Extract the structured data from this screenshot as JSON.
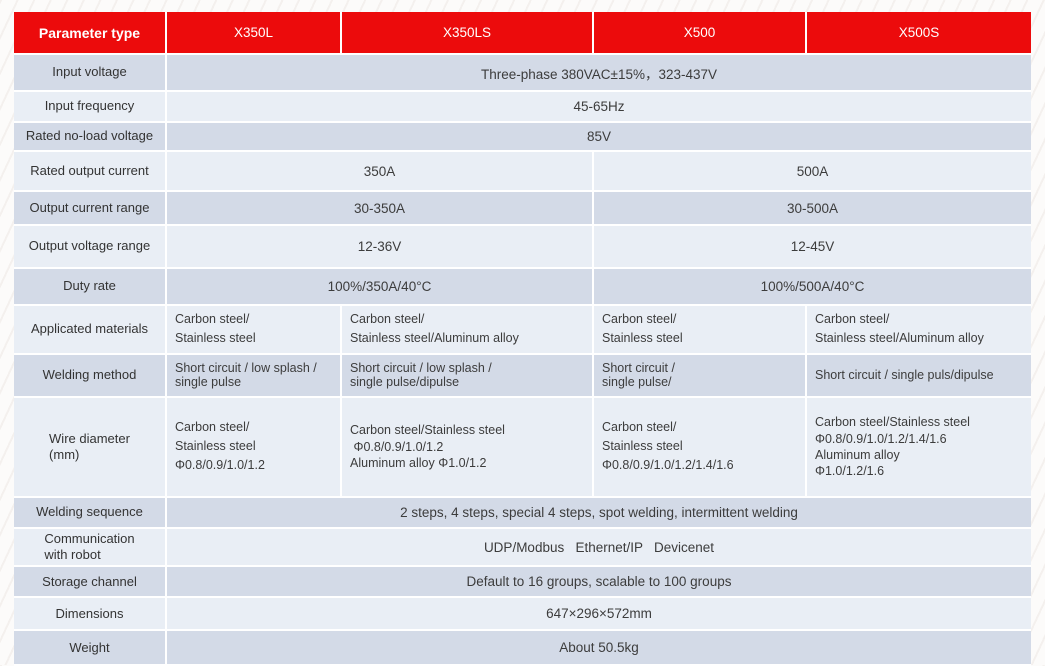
{
  "colors": {
    "header_bg": "#ec0b0c",
    "header_text": "#ffffff",
    "row_dark": "#d3dae7",
    "row_light": "#e9eef5",
    "gap": "#ffffff",
    "text": "#3c3c3c"
  },
  "header": {
    "cells": [
      "Parameter type",
      "X350L",
      "X350LS",
      "X500",
      "X500S"
    ]
  },
  "rows": [
    {
      "label": "Input voltage",
      "cells": [
        {
          "span": 4,
          "text": "Three-phase 380VAC±15%，323-437V"
        }
      ]
    },
    {
      "label": "Input frequency",
      "cells": [
        {
          "span": 4,
          "text": "45-65Hz"
        }
      ]
    },
    {
      "label": "Rated no-load voltage",
      "cells": [
        {
          "span": 4,
          "text": "85V"
        }
      ]
    },
    {
      "label": "Rated output current",
      "cells": [
        {
          "span": 2,
          "text": "350A"
        },
        {
          "span": 2,
          "text": "500A"
        }
      ]
    },
    {
      "label": "Output current range",
      "cells": [
        {
          "span": 2,
          "text": "30-350A"
        },
        {
          "span": 2,
          "text": "30-500A"
        }
      ]
    },
    {
      "label": "Output voltage range",
      "cells": [
        {
          "span": 2,
          "text": "12-36V"
        },
        {
          "span": 2,
          "text": "12-45V"
        }
      ]
    },
    {
      "label": "Duty rate",
      "cells": [
        {
          "span": 2,
          "text": "100%/350A/40°C"
        },
        {
          "span": 2,
          "text": "100%/500A/40°C"
        }
      ]
    },
    {
      "label": "Applicated  materials",
      "cells": [
        {
          "span": 1,
          "lines": [
            "Carbon steel/",
            "Stainless steel"
          ]
        },
        {
          "span": 1,
          "lines": [
            "Carbon steel/",
            "Stainless steel/Aluminum alloy"
          ]
        },
        {
          "span": 1,
          "lines": [
            "Carbon steel/",
            "Stainless steel"
          ]
        },
        {
          "span": 1,
          "lines": [
            "Carbon steel/",
            "Stainless steel/Aluminum alloy"
          ]
        }
      ]
    },
    {
      "label": "Welding method",
      "cells": [
        {
          "span": 1,
          "spacing": "tight",
          "lines": [
            "Short circuit / low splash /",
            "single pulse"
          ]
        },
        {
          "span": 1,
          "spacing": "tight",
          "lines": [
            "Short circuit / low splash /",
            "single pulse/dipulse"
          ]
        },
        {
          "span": 1,
          "spacing": "tight",
          "lines": [
            "Short circuit /",
            "single pulse/"
          ]
        },
        {
          "span": 1,
          "lines": [
            "Short circuit / single puls/dipulse"
          ]
        }
      ]
    },
    {
      "label": "Wire diameter\n(mm)",
      "cells": [
        {
          "span": 1,
          "lines": [
            "Carbon steel/",
            "Stainless steel",
            "Φ0.8/0.9/1.0/1.2"
          ]
        },
        {
          "span": 1,
          "spacing": "semi",
          "lines": [
            "Carbon steel/Stainless steel",
            " Φ0.8/0.9/1.0/1.2",
            "Aluminum alloy Φ1.0/1.2"
          ]
        },
        {
          "span": 1,
          "lines": [
            "Carbon steel/",
            "Stainless steel",
            "Φ0.8/0.9/1.0/1.2/1.4/1.6"
          ]
        },
        {
          "span": 1,
          "spacing": "semi",
          "lines": [
            "Carbon steel/Stainless steel",
            "Φ0.8/0.9/1.0/1.2/1.4/1.6",
            "Aluminum alloy",
            "Φ1.0/1.2/1.6"
          ]
        }
      ]
    },
    {
      "label": "Welding sequence",
      "cells": [
        {
          "span": 4,
          "text": "2 steps, 4 steps, special 4 steps, spot welding, intermittent welding"
        }
      ]
    },
    {
      "label": "Communication\nwith robot",
      "cells": [
        {
          "span": 4,
          "text": "UDP/Modbus   Ethernet/IP   Devicenet"
        }
      ]
    },
    {
      "label": "Storage channel",
      "cells": [
        {
          "span": 4,
          "text": "Default to 16 groups, scalable to 100 groups"
        }
      ]
    },
    {
      "label": "Dimensions",
      "cells": [
        {
          "span": 4,
          "text": "647×296×572mm"
        }
      ]
    },
    {
      "label": "Weight",
      "cells": [
        {
          "span": 4,
          "text": "About 50.5kg"
        }
      ]
    }
  ]
}
